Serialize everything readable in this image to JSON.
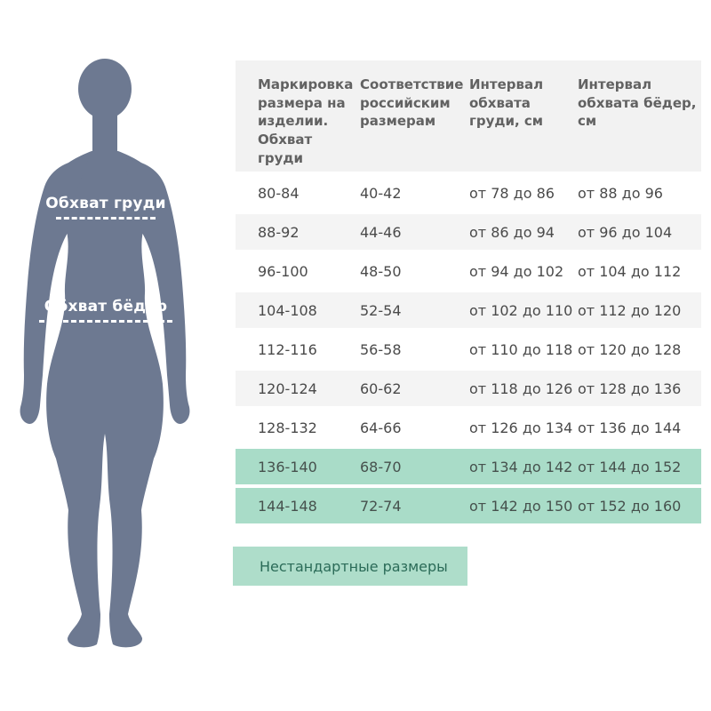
{
  "figure": {
    "chest_label": "Обхват груди",
    "hips_label": "Обхват бёдер",
    "silhouette_color": "#6d7991"
  },
  "table": {
    "headers": [
      "Маркировка размера на изделии. Обхват груди",
      "Соответствие российским размерам",
      "Интервал обхвата груди, см",
      "Интервал обхвата бёдер, см"
    ],
    "rows": [
      {
        "marking": "80-84",
        "russian": "40-42",
        "chest": "от 78 до 86",
        "hips": "от 88 до 96",
        "nonstandard": false
      },
      {
        "marking": "88-92",
        "russian": "44-46",
        "chest": "от 86 до 94",
        "hips": "от 96 до 104",
        "nonstandard": false
      },
      {
        "marking": "96-100",
        "russian": "48-50",
        "chest": "от 94 до 102",
        "hips": "от 104 до 112",
        "nonstandard": false
      },
      {
        "marking": "104-108",
        "russian": "52-54",
        "chest": "от 102 до 110",
        "hips": "от 112 до 120",
        "nonstandard": false
      },
      {
        "marking": "112-116",
        "russian": "56-58",
        "chest": "от 110 до 118",
        "hips": "от 120 до 128",
        "nonstandard": false
      },
      {
        "marking": "120-124",
        "russian": "60-62",
        "chest": "от 118 до 126",
        "hips": "от 128 до 136",
        "nonstandard": false
      },
      {
        "marking": "128-132",
        "russian": "64-66",
        "chest": "от 126 до 134",
        "hips": "от 136 до 144",
        "nonstandard": false
      },
      {
        "marking": "136-140",
        "russian": "68-70",
        "chest": "от 134 до 142",
        "hips": "от 144 до 152",
        "nonstandard": true
      },
      {
        "marking": "144-148",
        "russian": "72-74",
        "chest": "от 142 до 150",
        "hips": "от 152 до 160",
        "nonstandard": true
      }
    ]
  },
  "legend": {
    "label": "Нестандартные размеры"
  },
  "colors": {
    "highlight_row": "#a9dcc8",
    "legend_background": "#aeddca",
    "legend_text": "#2b6b58",
    "header_background": "#f2f2f2",
    "alt_row_background": "#f4f4f4",
    "body_text": "#4a4a4a",
    "header_text": "#626262",
    "silhouette": "#6d7991",
    "measure_text": "#ffffff"
  }
}
